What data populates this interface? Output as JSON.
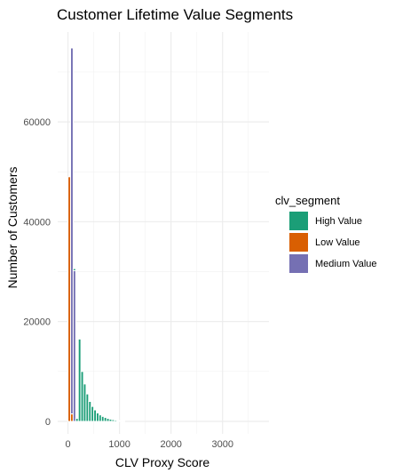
{
  "chart_data": {
    "type": "bar",
    "title": "Customer Lifetime Value Segments",
    "xlabel": "CLV Proxy Score",
    "ylabel": "Number of Customers",
    "xlim": [
      -200,
      3900
    ],
    "ylim": [
      -2500,
      78000
    ],
    "xticks": [
      0,
      1000,
      2000,
      3000
    ],
    "xtick_labels": [
      "0",
      "1000",
      "2000",
      "3000"
    ],
    "yticks": [
      0,
      20000,
      40000,
      60000
    ],
    "ytick_labels": [
      "0",
      "20000",
      "40000",
      "60000"
    ],
    "grid": true,
    "stacked": true,
    "bin_width": 50,
    "legend": {
      "title": "clv_segment",
      "position": "right"
    },
    "series": [
      {
        "name": "High Value",
        "color": "#1b9e77",
        "bins": [
          {
            "x": 125,
            "y": 400
          },
          {
            "x": 175,
            "y": 600
          },
          {
            "x": 225,
            "y": 16500
          },
          {
            "x": 275,
            "y": 10000
          },
          {
            "x": 325,
            "y": 7500
          },
          {
            "x": 375,
            "y": 5500
          },
          {
            "x": 425,
            "y": 4000
          },
          {
            "x": 475,
            "y": 3000
          },
          {
            "x": 525,
            "y": 2300
          },
          {
            "x": 575,
            "y": 1700
          },
          {
            "x": 625,
            "y": 1300
          },
          {
            "x": 675,
            "y": 1000
          },
          {
            "x": 725,
            "y": 800
          },
          {
            "x": 775,
            "y": 600
          },
          {
            "x": 825,
            "y": 450
          },
          {
            "x": 875,
            "y": 350
          },
          {
            "x": 925,
            "y": 250
          },
          {
            "x": 975,
            "y": 180
          },
          {
            "x": 1025,
            "y": 130
          },
          {
            "x": 1075,
            "y": 90
          }
        ]
      },
      {
        "name": "Low Value",
        "color": "#d95f02",
        "bins": [
          {
            "x": 25,
            "y": 49000
          },
          {
            "x": 75,
            "y": 1500
          }
        ]
      },
      {
        "name": "Medium Value",
        "color": "#7570b3",
        "bins": [
          {
            "x": 75,
            "y": 73300
          },
          {
            "x": 125,
            "y": 30200
          }
        ]
      }
    ]
  }
}
